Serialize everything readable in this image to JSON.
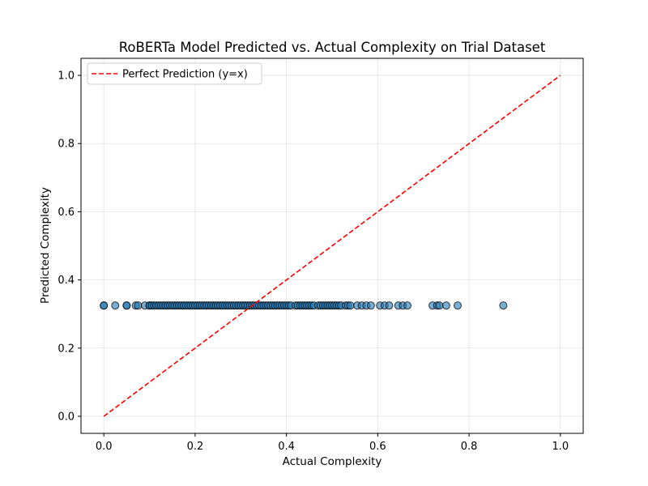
{
  "chart_data": {
    "type": "scatter",
    "title": "RoBERTa Model Predicted vs. Actual Complexity on Trial Dataset",
    "xlabel": "Actual Complexity",
    "ylabel": "Predicted Complexity",
    "xlim": [
      -0.05,
      1.05
    ],
    "ylim": [
      -0.05,
      1.05
    ],
    "xticks": [
      0.0,
      0.2,
      0.4,
      0.6,
      0.8,
      1.0
    ],
    "yticks": [
      0.0,
      0.2,
      0.4,
      0.6,
      0.8,
      1.0
    ],
    "xtick_labels": [
      "0.0",
      "0.2",
      "0.4",
      "0.6",
      "0.8",
      "1.0"
    ],
    "ytick_labels": [
      "0.0",
      "0.2",
      "0.4",
      "0.6",
      "0.8",
      "1.0"
    ],
    "grid": true,
    "legend": {
      "position": "top-left",
      "entries": [
        "Perfect Prediction (y=x)"
      ]
    },
    "colors": {
      "points": "#1f77b4",
      "point_edge": "#000000",
      "reference_line": "#ff0000"
    },
    "reference_line": {
      "name": "Perfect Prediction (y=x)",
      "x": [
        0.0,
        1.0
      ],
      "y": [
        0.0,
        1.0
      ],
      "style": "dashed"
    },
    "series": [
      {
        "x": [
          0.0,
          0.0,
          0.025,
          0.05,
          0.05,
          0.07,
          0.075,
          0.09,
          0.1,
          0.1,
          0.105,
          0.11,
          0.115,
          0.12,
          0.125,
          0.13,
          0.135,
          0.14,
          0.145,
          0.15,
          0.155,
          0.16,
          0.165,
          0.17,
          0.175,
          0.18,
          0.185,
          0.19,
          0.195,
          0.2,
          0.205,
          0.21,
          0.215,
          0.22,
          0.225,
          0.23,
          0.235,
          0.24,
          0.245,
          0.25,
          0.255,
          0.26,
          0.265,
          0.27,
          0.275,
          0.28,
          0.285,
          0.29,
          0.295,
          0.3,
          0.305,
          0.31,
          0.315,
          0.32,
          0.325,
          0.33,
          0.335,
          0.34,
          0.345,
          0.35,
          0.355,
          0.36,
          0.365,
          0.37,
          0.375,
          0.38,
          0.385,
          0.39,
          0.395,
          0.4,
          0.405,
          0.41,
          0.42,
          0.425,
          0.43,
          0.435,
          0.44,
          0.445,
          0.45,
          0.455,
          0.46,
          0.47,
          0.475,
          0.48,
          0.485,
          0.49,
          0.495,
          0.5,
          0.505,
          0.51,
          0.515,
          0.52,
          0.53,
          0.535,
          0.54,
          0.555,
          0.565,
          0.575,
          0.585,
          0.605,
          0.615,
          0.625,
          0.645,
          0.655,
          0.665,
          0.72,
          0.73,
          0.735,
          0.75,
          0.775,
          0.875
        ],
        "y": [
          0.325,
          0.325,
          0.325,
          0.325,
          0.325,
          0.325,
          0.325,
          0.325,
          0.325,
          0.325,
          0.325,
          0.325,
          0.325,
          0.325,
          0.325,
          0.325,
          0.325,
          0.325,
          0.325,
          0.325,
          0.325,
          0.325,
          0.325,
          0.325,
          0.325,
          0.325,
          0.325,
          0.325,
          0.325,
          0.325,
          0.325,
          0.325,
          0.325,
          0.325,
          0.325,
          0.325,
          0.325,
          0.325,
          0.325,
          0.325,
          0.325,
          0.325,
          0.325,
          0.325,
          0.325,
          0.325,
          0.325,
          0.325,
          0.325,
          0.325,
          0.325,
          0.325,
          0.325,
          0.325,
          0.325,
          0.325,
          0.325,
          0.325,
          0.325,
          0.325,
          0.325,
          0.325,
          0.325,
          0.325,
          0.325,
          0.325,
          0.325,
          0.325,
          0.325,
          0.325,
          0.325,
          0.325,
          0.325,
          0.325,
          0.325,
          0.325,
          0.325,
          0.325,
          0.325,
          0.325,
          0.325,
          0.325,
          0.325,
          0.325,
          0.325,
          0.325,
          0.325,
          0.325,
          0.325,
          0.325,
          0.325,
          0.325,
          0.325,
          0.325,
          0.325,
          0.325,
          0.325,
          0.325,
          0.325,
          0.325,
          0.325,
          0.325,
          0.325,
          0.325,
          0.325,
          0.325,
          0.325,
          0.325,
          0.325,
          0.325,
          0.325
        ]
      }
    ]
  }
}
